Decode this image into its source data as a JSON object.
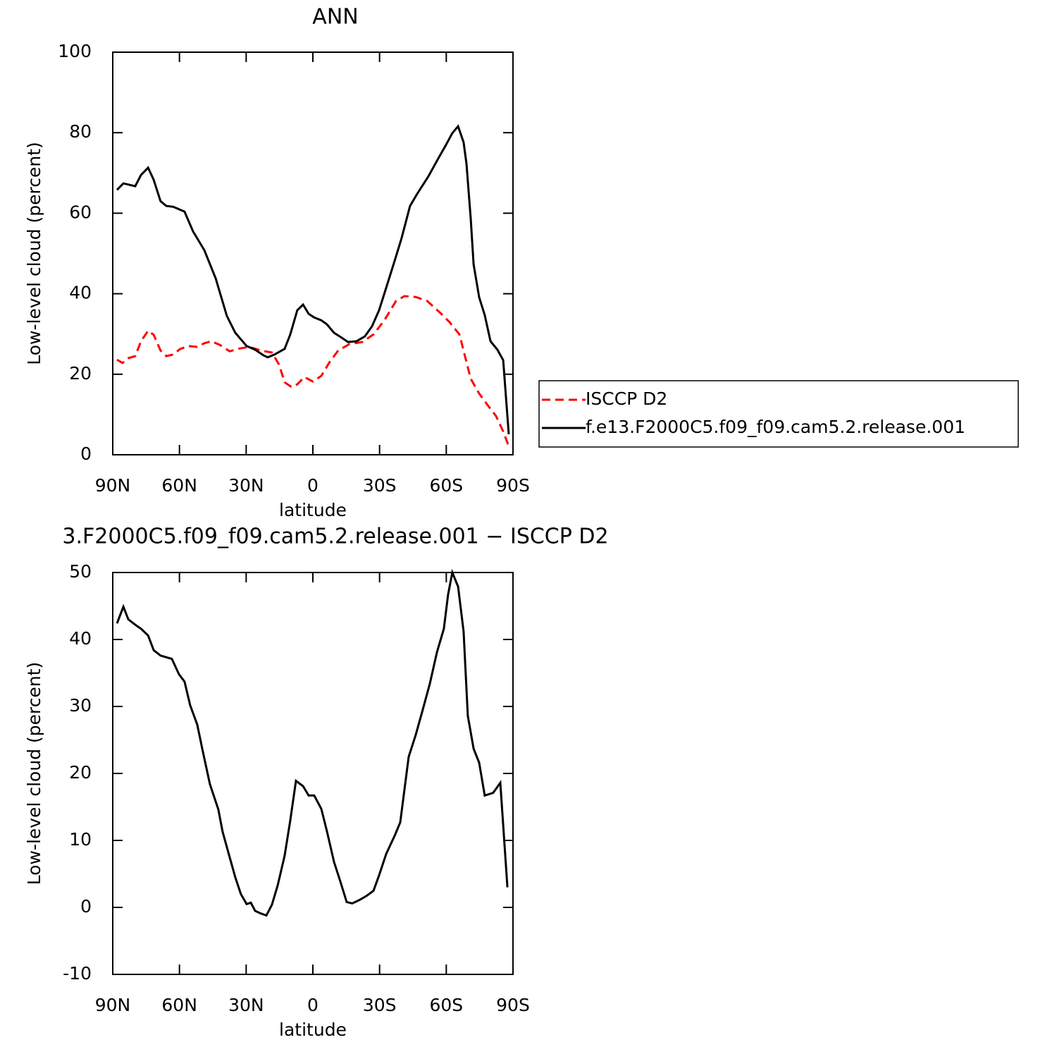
{
  "chart_data": [
    {
      "type": "line",
      "title": "ANN",
      "xlabel": "latitude",
      "ylabel": "Low-level cloud (percent)",
      "xlim": [
        90,
        -90
      ],
      "xticks": [
        {
          "value": 90,
          "label": "90N"
        },
        {
          "value": 60,
          "label": "60N"
        },
        {
          "value": 30,
          "label": "30N"
        },
        0,
        {
          "value": -30,
          "label": "30S"
        },
        {
          "value": -60,
          "label": "60S"
        },
        {
          "value": -90,
          "label": "90S"
        }
      ],
      "ylim": [
        0,
        100
      ],
      "yticks": [
        0,
        20,
        40,
        60,
        80,
        100
      ],
      "legend": "right",
      "series": [
        {
          "name": "ISCCP D2",
          "color": "#ff0000",
          "dashed": true,
          "x": [
            88.1,
            85.6,
            83.0,
            79.9,
            77.3,
            74.1,
            71.6,
            68.5,
            65.9,
            62.8,
            59.6,
            55.8,
            52.0,
            48.8,
            45.7,
            41.9,
            37.4,
            33.0,
            28.5,
            23.5,
            18.4,
            15.2,
            12.7,
            9.5,
            7.0,
            3.8,
            0.0,
            -3.8,
            -7.6,
            -11.4,
            -16.5,
            -22.2,
            -27.3,
            -32.3,
            -37.4,
            -41.2,
            -46.3,
            -51.4,
            -57.0,
            -61.5,
            -65.9,
            -71.0,
            -74.8,
            -79.2,
            -82.4,
            -85.6,
            -88.1
          ],
          "values": [
            23.6,
            22.8,
            24.0,
            24.5,
            28.2,
            30.8,
            29.8,
            25.9,
            24.5,
            24.9,
            26.3,
            27.0,
            26.8,
            27.7,
            28.2,
            27.3,
            25.7,
            26.4,
            26.8,
            25.9,
            25.4,
            22.4,
            18.0,
            16.8,
            17.5,
            19.3,
            18.2,
            19.6,
            23.1,
            25.9,
            27.5,
            28.0,
            29.9,
            33.5,
            38.2,
            39.4,
            39.2,
            38.2,
            35.4,
            32.9,
            29.9,
            18.9,
            15.2,
            11.9,
            9.6,
            5.8,
            2.1
          ]
        },
        {
          "name": "f.e13.F2000C5.f09_f09.cam5.2.release.001",
          "color": "#000000",
          "dashed": false,
          "x": [
            88.1,
            85.2,
            79.9,
            77.3,
            74.1,
            71.6,
            68.5,
            65.9,
            62.8,
            57.7,
            53.9,
            48.8,
            43.7,
            38.7,
            34.9,
            29.8,
            26.0,
            22.2,
            20.3,
            17.2,
            12.7,
            10.2,
            7.0,
            4.4,
            1.9,
            -0.6,
            -3.8,
            -6.3,
            -9.5,
            -12.6,
            -15.8,
            -19.6,
            -23.4,
            -26.6,
            -29.8,
            -33.0,
            -36.8,
            -39.9,
            -43.7,
            -46.9,
            -52.0,
            -56.4,
            -59.6,
            -62.7,
            -65.3,
            -67.8,
            -69.1,
            -71.0,
            -72.3,
            -74.8,
            -77.3,
            -79.9,
            -83.0,
            -85.6,
            -88.1
          ],
          "values": [
            65.8,
            67.4,
            66.7,
            69.5,
            71.3,
            68.3,
            63.0,
            61.8,
            61.6,
            60.4,
            55.5,
            50.8,
            43.8,
            34.5,
            30.3,
            27.0,
            26.1,
            24.7,
            24.2,
            24.9,
            26.3,
            29.8,
            35.9,
            37.3,
            35.0,
            34.1,
            33.4,
            32.4,
            30.3,
            29.2,
            28.0,
            28.2,
            29.4,
            31.9,
            35.9,
            41.5,
            48.2,
            53.8,
            61.8,
            64.8,
            69.2,
            73.6,
            76.7,
            79.9,
            81.6,
            77.6,
            72.3,
            58.7,
            47.3,
            39.1,
            34.7,
            28.2,
            26.1,
            23.5,
            5.1
          ]
        }
      ]
    },
    {
      "type": "line",
      "title": "3.F2000C5.f09_f09.cam5.2.release.001 − ISCCP D2",
      "xlabel": "latitude",
      "ylabel": "Low-level cloud (percent)",
      "xlim": [
        90,
        -90
      ],
      "xticks": [
        {
          "value": 90,
          "label": "90N"
        },
        {
          "value": 60,
          "label": "60N"
        },
        {
          "value": 30,
          "label": "30N"
        },
        0,
        {
          "value": -30,
          "label": "30S"
        },
        {
          "value": -60,
          "label": "60S"
        },
        {
          "value": -90,
          "label": "90S"
        }
      ],
      "ylim": [
        -10,
        50
      ],
      "yticks": [
        -10,
        0,
        10,
        20,
        30,
        40,
        50
      ],
      "color": "#000000",
      "x": [
        88.1,
        85.2,
        83.0,
        79.9,
        77.3,
        74.1,
        71.6,
        68.5,
        63.4,
        60.2,
        57.7,
        55.2,
        52.0,
        49.5,
        46.3,
        42.5,
        40.6,
        38.1,
        34.9,
        32.4,
        29.8,
        27.9,
        26.0,
        23.5,
        20.9,
        18.4,
        15.8,
        12.7,
        10.2,
        7.6,
        4.4,
        1.9,
        -0.6,
        -3.8,
        -6.3,
        -9.5,
        -12.6,
        -15.2,
        -17.7,
        -20.9,
        -24.1,
        -27.3,
        -29.8,
        -33.0,
        -36.8,
        -39.3,
        -43.1,
        -46.3,
        -49.4,
        -52.6,
        -55.8,
        -58.9,
        -60.8,
        -62.7,
        -65.3,
        -67.8,
        -69.7,
        -72.3,
        -74.8,
        -77.3,
        -81.1,
        -84.3,
        -87.5
      ],
      "values": [
        42.4,
        44.9,
        43.0,
        42.2,
        41.6,
        40.6,
        38.4,
        37.6,
        37.1,
        34.8,
        33.7,
        30.2,
        27.3,
        23.3,
        18.4,
        14.6,
        11.3,
        8.3,
        4.5,
        2.0,
        0.5,
        0.7,
        -0.5,
        -0.9,
        -1.2,
        0.4,
        3.3,
        7.7,
        12.9,
        18.9,
        18.1,
        16.7,
        16.7,
        14.7,
        11.4,
        6.8,
        3.6,
        0.8,
        0.6,
        1.1,
        1.7,
        2.5,
        4.8,
        8.0,
        10.7,
        12.7,
        22.5,
        25.8,
        29.5,
        33.4,
        38.1,
        41.6,
        46.7,
        50.0,
        47.9,
        41.2,
        28.6,
        23.7,
        21.6,
        16.7,
        17.1,
        18.6,
        3.0
      ]
    }
  ]
}
